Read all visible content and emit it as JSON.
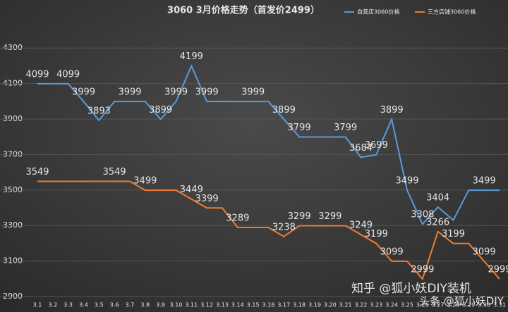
{
  "chart_data": {
    "type": "line",
    "title": "3060 3月价格走势（首发价2499）",
    "categories": [
      "3.1",
      "3.2",
      "3.3",
      "3.4",
      "3.5",
      "3.6",
      "3.7",
      "3.8",
      "3.9",
      "3.10",
      "3.11",
      "3.12",
      "3.13",
      "3.14",
      "3.15",
      "3.16",
      "3.17",
      "3.18",
      "3.19",
      "3.20",
      "3.21",
      "3.22",
      "3.23",
      "3.24",
      "3.25",
      "3.26",
      "3.27",
      "3.28",
      "3.29",
      "3.30",
      "3.31"
    ],
    "series": [
      {
        "name": "自营店3060价格",
        "color": "#5b9bd5",
        "values": [
          4099,
          4099,
          4099,
          3999,
          3893,
          3999,
          3999,
          3999,
          3899,
          3999,
          4199,
          3999,
          3999,
          3999,
          3999,
          3999,
          3899,
          3799,
          3799,
          3799,
          3799,
          3684,
          3699,
          3899,
          3499,
          3308,
          3404,
          3330,
          3499,
          3499,
          3499
        ],
        "value_labels": [
          "4099",
          null,
          "4099",
          "3999",
          "3893",
          null,
          "3999",
          null,
          "3899",
          "3999",
          "4199",
          "3999",
          null,
          null,
          "3999",
          null,
          "3899",
          "3799",
          null,
          null,
          "3799",
          "3684",
          "3699",
          "3899",
          "3499",
          "3308",
          "3404",
          null,
          null,
          "3499",
          null
        ]
      },
      {
        "name": "三方店铺3060价格",
        "color": "#ed7d31",
        "values": [
          3549,
          3549,
          3549,
          3549,
          3549,
          3549,
          3549,
          3499,
          3499,
          3499,
          3449,
          3399,
          3399,
          3289,
          3289,
          3289,
          3238,
          3299,
          3299,
          3299,
          3299,
          3249,
          3199,
          3099,
          3099,
          2999,
          3266,
          3199,
          3199,
          3099,
          2999
        ],
        "value_labels": [
          "3549",
          null,
          null,
          null,
          null,
          "3549",
          null,
          "3499",
          null,
          null,
          "3449",
          "3399",
          null,
          "3289",
          null,
          null,
          "3238",
          "3299",
          null,
          "3299",
          null,
          "3249",
          "3199",
          "3099",
          null,
          "2999",
          "3266",
          "3199",
          null,
          "3099",
          "2999"
        ]
      }
    ],
    "ylim": [
      2900,
      4400
    ],
    "yticks": [
      2900,
      3100,
      3300,
      3500,
      3700,
      3900,
      4100,
      4300
    ],
    "grid": true,
    "legend": "top-right",
    "annotations": [
      "知乎 @狐小妖DIY装机",
      "头条 @狐小妖DIY"
    ]
  }
}
